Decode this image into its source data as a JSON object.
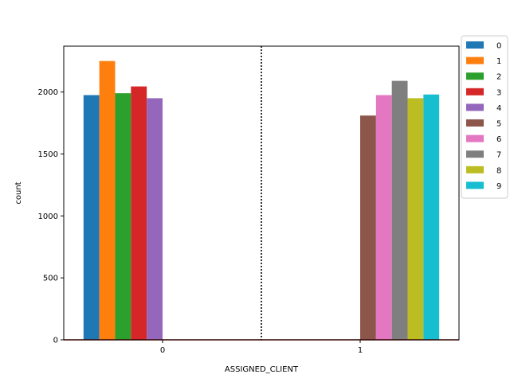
{
  "chart_data": {
    "type": "bar",
    "xlabel": "ASSIGNED_CLIENT",
    "ylabel": "count",
    "categories": [
      "0",
      "1"
    ],
    "ylim": [
      0,
      2370
    ],
    "yticks": [
      0,
      500,
      1000,
      1500,
      2000
    ],
    "grid": false,
    "legend_position": "right",
    "series": [
      {
        "name": "0",
        "color": "#1f77b4",
        "values": [
          1975,
          0
        ]
      },
      {
        "name": "1",
        "color": "#ff7f0e",
        "values": [
          2250,
          0
        ]
      },
      {
        "name": "2",
        "color": "#2ca02c",
        "values": [
          1990,
          0
        ]
      },
      {
        "name": "3",
        "color": "#d62728",
        "values": [
          2045,
          0
        ]
      },
      {
        "name": "4",
        "color": "#9467bd",
        "values": [
          1950,
          0
        ]
      },
      {
        "name": "5",
        "color": "#8c564b",
        "values": [
          0,
          1810
        ]
      },
      {
        "name": "6",
        "color": "#e377c2",
        "values": [
          0,
          1975
        ]
      },
      {
        "name": "7",
        "color": "#7f7f7f",
        "values": [
          0,
          2090
        ]
      },
      {
        "name": "8",
        "color": "#bcbd22",
        "values": [
          0,
          1950
        ]
      },
      {
        "name": "9",
        "color": "#17becf",
        "values": [
          0,
          1980
        ]
      }
    ],
    "annotations": {
      "divider": {
        "style": "dotted",
        "color": "#000000"
      },
      "baseline": {
        "color": "#8b0000"
      }
    }
  }
}
